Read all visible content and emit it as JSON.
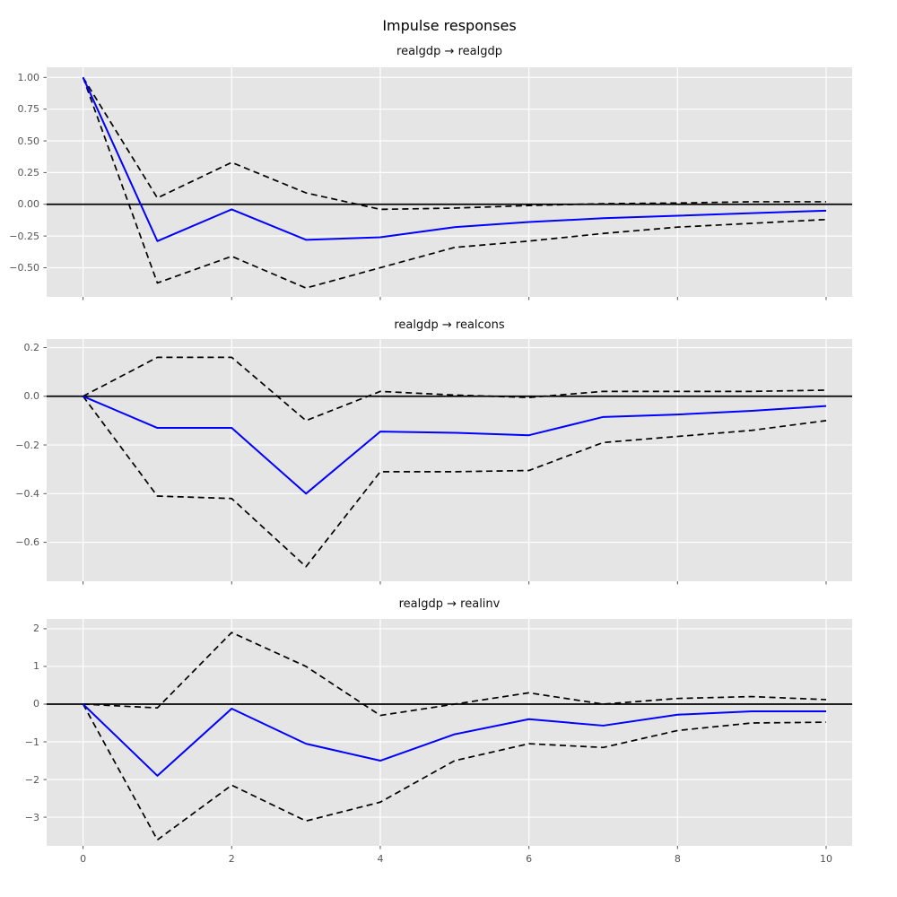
{
  "figure": {
    "suptitle": "Impulse responses",
    "background_color": "#ffffff",
    "axes_background": "#e5e5e5",
    "grid_color": "#ffffff",
    "tick_color": "#555555",
    "zero_line_color": "#000000",
    "impulse_color": "#0000ff",
    "ci_color": "#000000"
  },
  "chart_data": [
    {
      "type": "line",
      "title": "realgdp → realgdp",
      "x": [
        0,
        1,
        2,
        3,
        4,
        5,
        6,
        7,
        8,
        9,
        10
      ],
      "series": [
        {
          "name": "impulse-response",
          "style": "solid",
          "color": "#0000ff",
          "values": [
            1.0,
            -0.29,
            -0.04,
            -0.28,
            -0.26,
            -0.18,
            -0.14,
            -0.11,
            -0.09,
            -0.07,
            -0.05
          ]
        },
        {
          "name": "upper-ci",
          "style": "dashed",
          "color": "#000000",
          "values": [
            1.0,
            0.05,
            0.33,
            0.09,
            -0.04,
            -0.03,
            -0.01,
            0.005,
            0.01,
            0.02,
            0.02
          ]
        },
        {
          "name": "lower-ci",
          "style": "dashed",
          "color": "#000000",
          "values": [
            1.0,
            -0.62,
            -0.41,
            -0.66,
            -0.5,
            -0.34,
            -0.29,
            -0.23,
            -0.18,
            -0.15,
            -0.12
          ]
        }
      ],
      "xlim": [
        -0.49,
        10.35
      ],
      "ylim": [
        -0.73,
        1.08
      ],
      "grid": true,
      "zero_line": true,
      "yticks": {
        "values": [
          1.0,
          0.75,
          0.5,
          0.25,
          0.0,
          -0.25,
          -0.5
        ],
        "labels": [
          "1.00",
          "0.75",
          "0.50",
          "0.25",
          "0.00",
          "−0.25",
          "−0.50"
        ]
      },
      "xticks": {
        "values": [
          0,
          2,
          4,
          6,
          8,
          10
        ],
        "labels": [
          "0",
          "2",
          "4",
          "6",
          "8",
          "10"
        ],
        "labels_visible": false
      }
    },
    {
      "type": "line",
      "title": "realgdp → realcons",
      "x": [
        0,
        1,
        2,
        3,
        4,
        5,
        6,
        7,
        8,
        9,
        10
      ],
      "series": [
        {
          "name": "impulse-response",
          "style": "solid",
          "color": "#0000ff",
          "values": [
            0.0,
            -0.13,
            -0.13,
            -0.4,
            -0.145,
            -0.15,
            -0.16,
            -0.085,
            -0.075,
            -0.06,
            -0.04
          ]
        },
        {
          "name": "upper-ci",
          "style": "dashed",
          "color": "#000000",
          "values": [
            0.0,
            0.16,
            0.16,
            -0.1,
            0.02,
            0.005,
            -0.005,
            0.02,
            0.02,
            0.02,
            0.025
          ]
        },
        {
          "name": "lower-ci",
          "style": "dashed",
          "color": "#000000",
          "values": [
            0.0,
            -0.41,
            -0.42,
            -0.7,
            -0.31,
            -0.31,
            -0.305,
            -0.19,
            -0.165,
            -0.14,
            -0.1
          ]
        }
      ],
      "xlim": [
        -0.49,
        10.35
      ],
      "ylim": [
        -0.76,
        0.235
      ],
      "grid": true,
      "zero_line": true,
      "yticks": {
        "values": [
          0.2,
          0.0,
          -0.2,
          -0.4,
          -0.6
        ],
        "labels": [
          "0.2",
          "0.0",
          "−0.2",
          "−0.4",
          "−0.6"
        ]
      },
      "xticks": {
        "values": [
          0,
          2,
          4,
          6,
          8,
          10
        ],
        "labels": [
          "0",
          "2",
          "4",
          "6",
          "8",
          "10"
        ],
        "labels_visible": false
      }
    },
    {
      "type": "line",
      "title": "realgdp → realinv",
      "x": [
        0,
        1,
        2,
        3,
        4,
        5,
        6,
        7,
        8,
        9,
        10
      ],
      "series": [
        {
          "name": "impulse-response",
          "style": "solid",
          "color": "#0000ff",
          "values": [
            0.0,
            -1.9,
            -0.12,
            -1.05,
            -1.5,
            -0.8,
            -0.4,
            -0.57,
            -0.28,
            -0.19,
            -0.19
          ]
        },
        {
          "name": "upper-ci",
          "style": "dashed",
          "color": "#000000",
          "values": [
            0.0,
            -0.1,
            1.9,
            1.0,
            -0.3,
            0.0,
            0.3,
            0.0,
            0.15,
            0.2,
            0.12
          ]
        },
        {
          "name": "lower-ci",
          "style": "dashed",
          "color": "#000000",
          "values": [
            0.0,
            -3.6,
            -2.15,
            -3.1,
            -2.6,
            -1.5,
            -1.05,
            -1.15,
            -0.7,
            -0.5,
            -0.48
          ]
        }
      ],
      "xlim": [
        -0.49,
        10.35
      ],
      "ylim": [
        -3.76,
        2.26
      ],
      "grid": true,
      "zero_line": true,
      "yticks": {
        "values": [
          2,
          1,
          0,
          -1,
          -2,
          -3
        ],
        "labels": [
          "2",
          "1",
          "0",
          "−1",
          "−2",
          "−3"
        ]
      },
      "xticks": {
        "values": [
          0,
          2,
          4,
          6,
          8,
          10
        ],
        "labels": [
          "0",
          "2",
          "4",
          "6",
          "8",
          "10"
        ],
        "labels_visible": true
      }
    }
  ]
}
